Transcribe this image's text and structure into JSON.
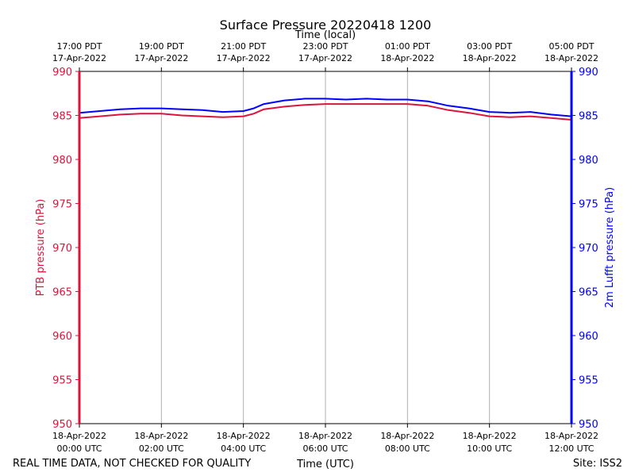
{
  "chart_data": {
    "type": "line",
    "title": "Surface Pressure 20220418 1200",
    "top_axis_label": "Time (local)",
    "xlabel": "Time (UTC)",
    "ylabel_left": "PTB pressure (hPa)",
    "ylabel_right": "2m Lufft pressure (hPa)",
    "footer_left": "REAL TIME DATA, NOT CHECKED FOR QUALITY",
    "footer_right": "Site: ISS2",
    "xlim_hours": [
      0,
      12
    ],
    "ylim": [
      950,
      990
    ],
    "yticks": [
      950,
      955,
      960,
      965,
      970,
      975,
      980,
      985,
      990
    ],
    "bottom_ticks": [
      {
        "hour": 0,
        "date": "18-Apr-2022",
        "time": "00:00 UTC"
      },
      {
        "hour": 2,
        "date": "18-Apr-2022",
        "time": "02:00 UTC"
      },
      {
        "hour": 4,
        "date": "18-Apr-2022",
        "time": "04:00 UTC"
      },
      {
        "hour": 6,
        "date": "18-Apr-2022",
        "time": "06:00 UTC"
      },
      {
        "hour": 8,
        "date": "18-Apr-2022",
        "time": "08:00 UTC"
      },
      {
        "hour": 10,
        "date": "18-Apr-2022",
        "time": "10:00 UTC"
      },
      {
        "hour": 12,
        "date": "18-Apr-2022",
        "time": "12:00 UTC"
      }
    ],
    "top_ticks": [
      {
        "hour": 0,
        "time": "17:00 PDT",
        "date": "17-Apr-2022"
      },
      {
        "hour": 2,
        "time": "19:00 PDT",
        "date": "17-Apr-2022"
      },
      {
        "hour": 4,
        "time": "21:00 PDT",
        "date": "17-Apr-2022"
      },
      {
        "hour": 6,
        "time": "23:00 PDT",
        "date": "17-Apr-2022"
      },
      {
        "hour": 8,
        "time": "01:00 PDT",
        "date": "18-Apr-2022"
      },
      {
        "hour": 10,
        "time": "03:00 PDT",
        "date": "18-Apr-2022"
      },
      {
        "hour": 12,
        "time": "05:00 PDT",
        "date": "18-Apr-2022"
      }
    ],
    "grid": true,
    "series": [
      {
        "name": "PTB pressure",
        "color": "#dc143c",
        "x": [
          0,
          0.5,
          1,
          1.5,
          2,
          2.5,
          3,
          3.5,
          4,
          4.25,
          4.5,
          5,
          5.5,
          6,
          6.5,
          7,
          7.5,
          8,
          8.5,
          9,
          9.5,
          10,
          10.5,
          11,
          11.5,
          12
        ],
        "y": [
          984.7,
          984.9,
          985.1,
          985.2,
          985.2,
          985.0,
          984.9,
          984.8,
          984.9,
          985.2,
          985.7,
          986.0,
          986.2,
          986.3,
          986.3,
          986.3,
          986.3,
          986.3,
          986.1,
          985.6,
          985.3,
          984.9,
          984.8,
          984.9,
          984.7,
          984.5
        ]
      },
      {
        "name": "2m Lufft pressure",
        "color": "#0000ff",
        "x": [
          0,
          0.5,
          1,
          1.5,
          2,
          2.5,
          3,
          3.5,
          4,
          4.25,
          4.5,
          5,
          5.5,
          6,
          6.5,
          7,
          7.5,
          8,
          8.5,
          9,
          9.5,
          10,
          10.5,
          11,
          11.5,
          12
        ],
        "y": [
          985.3,
          985.5,
          985.7,
          985.8,
          985.8,
          985.7,
          985.6,
          985.4,
          985.5,
          985.8,
          986.3,
          986.7,
          986.9,
          986.9,
          986.8,
          986.9,
          986.8,
          986.8,
          986.6,
          986.1,
          985.8,
          985.4,
          985.3,
          985.4,
          985.1,
          984.9
        ]
      }
    ]
  }
}
